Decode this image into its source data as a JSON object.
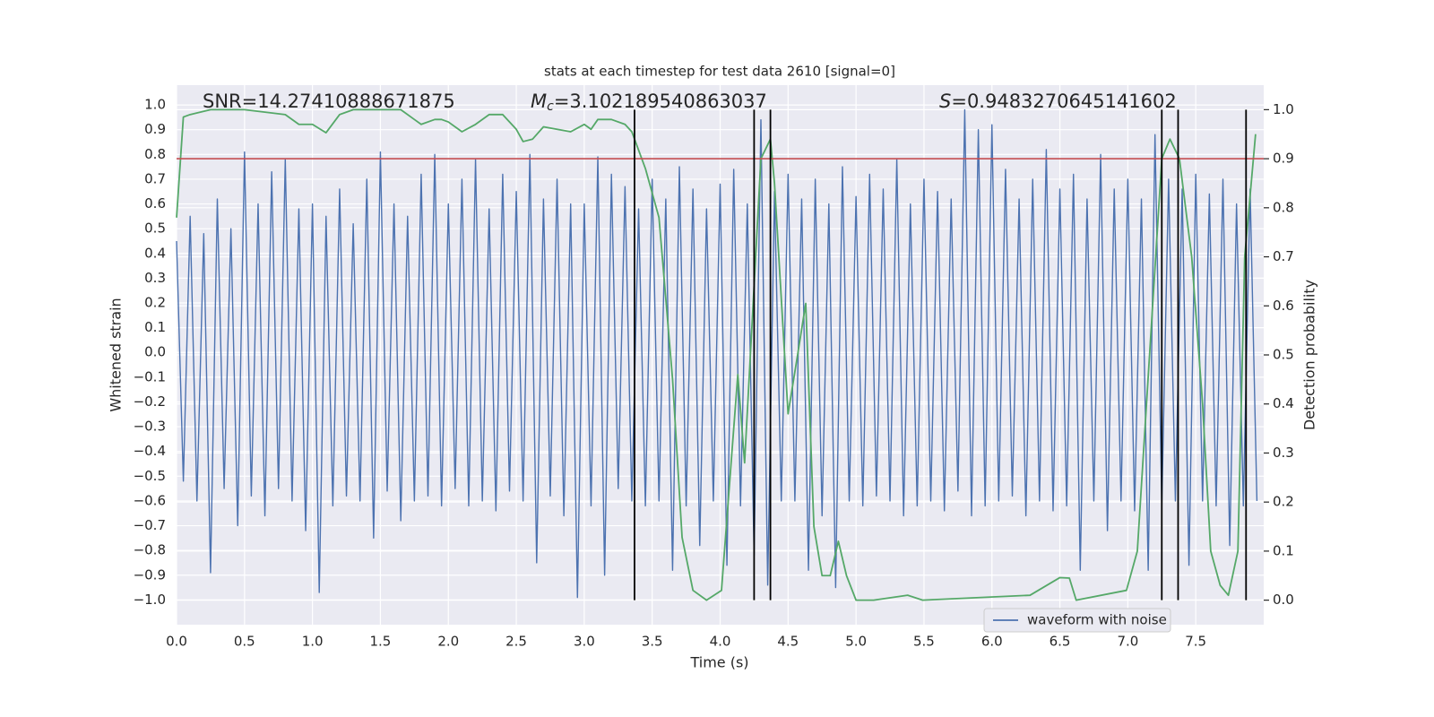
{
  "chart_data": {
    "type": "line",
    "title": "stats at each timestep for test data 2610 [signal=0]",
    "xlabel": "Time (s)",
    "ylabel": "Whitened strain",
    "y2label": "Detection probability",
    "annotations": [
      {
        "parts": [
          "SNR=14.27410888671875"
        ]
      },
      {
        "parts": [
          "M",
          "c",
          "=3.102189540863037"
        ]
      },
      {
        "parts": [
          "S",
          "=0.9483270645141602"
        ]
      }
    ],
    "xlim": [
      0,
      8
    ],
    "ylim": [
      -1.1,
      1.08
    ],
    "y2lim": [
      -0.05,
      1.05
    ],
    "xticks": [
      {
        "value": 0,
        "label": "0.0"
      },
      {
        "value": 0.5,
        "label": "0.5"
      },
      {
        "value": 1,
        "label": "1.0"
      },
      {
        "value": 1.5,
        "label": "1.5"
      },
      {
        "value": 2,
        "label": "2.0"
      },
      {
        "value": 2.5,
        "label": "2.5"
      },
      {
        "value": 3,
        "label": "3.0"
      },
      {
        "value": 3.5,
        "label": "3.5"
      },
      {
        "value": 4,
        "label": "4.0"
      },
      {
        "value": 4.5,
        "label": "4.5"
      },
      {
        "value": 5,
        "label": "5.0"
      },
      {
        "value": 5.5,
        "label": "5.5"
      },
      {
        "value": 6,
        "label": "6.0"
      },
      {
        "value": 6.5,
        "label": "6.5"
      },
      {
        "value": 7,
        "label": "7.0"
      },
      {
        "value": 7.5,
        "label": "7.5"
      }
    ],
    "yticks": [
      {
        "value": 1,
        "label": "1.0"
      },
      {
        "value": 0.9,
        "label": "0.9"
      },
      {
        "value": 0.8,
        "label": "0.8"
      },
      {
        "value": 0.7,
        "label": "0.7"
      },
      {
        "value": 0.6,
        "label": "0.6"
      },
      {
        "value": 0.5,
        "label": "0.5"
      },
      {
        "value": 0.4,
        "label": "0.4"
      },
      {
        "value": 0.3,
        "label": "0.3"
      },
      {
        "value": 0.2,
        "label": "0.2"
      },
      {
        "value": 0.1,
        "label": "0.1"
      },
      {
        "value": 0,
        "label": "0.0"
      },
      {
        "value": -0.1,
        "label": "−0.1"
      },
      {
        "value": -0.2,
        "label": "−0.2"
      },
      {
        "value": -0.3,
        "label": "−0.3"
      },
      {
        "value": -0.4,
        "label": "−0.4"
      },
      {
        "value": -0.5,
        "label": "−0.5"
      },
      {
        "value": -0.6,
        "label": "−0.6"
      },
      {
        "value": -0.7,
        "label": "−0.7"
      },
      {
        "value": -0.8,
        "label": "−0.8"
      },
      {
        "value": -0.9,
        "label": "−0.9"
      },
      {
        "value": -1,
        "label": "−1.0"
      }
    ],
    "y2ticks": [
      {
        "value": 0,
        "label": "0.0"
      },
      {
        "value": 0.1,
        "label": "0.1"
      },
      {
        "value": 0.2,
        "label": "0.2"
      },
      {
        "value": 0.3,
        "label": "0.3"
      },
      {
        "value": 0.4,
        "label": "0.4"
      },
      {
        "value": 0.5,
        "label": "0.5"
      },
      {
        "value": 0.6,
        "label": "0.6"
      },
      {
        "value": 0.7,
        "label": "0.7"
      },
      {
        "value": 0.8,
        "label": "0.8"
      },
      {
        "value": 0.9,
        "label": "0.9"
      },
      {
        "value": 1,
        "label": "1.0"
      }
    ],
    "grid": true,
    "legend": "lower right",
    "series": [
      {
        "name": "waveform with noise",
        "color": "#4c72b0",
        "axis": "y",
        "x": [
          0,
          0.05,
          0.1,
          0.15,
          0.2,
          0.25,
          0.3,
          0.35,
          0.4,
          0.45,
          0.5,
          0.55,
          0.6,
          0.65,
          0.7,
          0.75,
          0.8,
          0.85,
          0.9,
          0.95,
          1,
          1.05,
          1.1,
          1.15,
          1.2,
          1.25,
          1.3,
          1.35,
          1.4,
          1.45,
          1.5,
          1.55,
          1.6,
          1.65,
          1.7,
          1.75,
          1.8,
          1.85,
          1.9,
          1.95,
          2,
          2.05,
          2.1,
          2.15,
          2.2,
          2.25,
          2.3,
          2.35,
          2.4,
          2.45,
          2.5,
          2.55,
          2.6,
          2.65,
          2.7,
          2.75,
          2.8,
          2.85,
          2.9,
          2.95,
          3,
          3.05,
          3.1,
          3.15,
          3.2,
          3.25,
          3.3,
          3.35,
          3.4,
          3.45,
          3.5,
          3.55,
          3.6,
          3.65,
          3.7,
          3.75,
          3.8,
          3.85,
          3.9,
          3.95,
          4,
          4.05,
          4.1,
          4.15,
          4.2,
          4.25,
          4.3,
          4.35,
          4.4,
          4.45,
          4.5,
          4.55,
          4.6,
          4.65,
          4.7,
          4.75,
          4.8,
          4.85,
          4.9,
          4.95,
          5,
          5.05,
          5.1,
          5.15,
          5.2,
          5.25,
          5.3,
          5.35,
          5.4,
          5.45,
          5.5,
          5.55,
          5.6,
          5.65,
          5.7,
          5.75,
          5.8,
          5.85,
          5.9,
          5.95,
          6,
          6.05,
          6.1,
          6.15,
          6.2,
          6.25,
          6.3,
          6.35,
          6.4,
          6.45,
          6.5,
          6.55,
          6.6,
          6.65,
          6.7,
          6.75,
          6.8,
          6.85,
          6.9,
          6.95,
          7,
          7.05,
          7.1,
          7.15,
          7.2,
          7.25,
          7.3,
          7.35,
          7.4,
          7.45,
          7.5,
          7.55,
          7.6,
          7.65,
          7.7,
          7.75,
          7.8,
          7.85,
          7.9,
          7.95
        ],
        "values": [
          0.45,
          -0.52,
          0.55,
          -0.6,
          0.48,
          -0.89,
          0.62,
          -0.55,
          0.5,
          -0.7,
          0.81,
          -0.58,
          0.6,
          -0.66,
          0.73,
          -0.55,
          0.78,
          -0.6,
          0.58,
          -0.72,
          0.6,
          -0.97,
          0.55,
          -0.62,
          0.66,
          -0.58,
          0.52,
          -0.6,
          0.7,
          -0.75,
          0.81,
          -0.56,
          0.6,
          -0.68,
          0.55,
          -0.6,
          0.72,
          -0.58,
          0.8,
          -0.62,
          0.6,
          -0.55,
          0.7,
          -0.62,
          0.78,
          -0.6,
          0.58,
          -0.64,
          0.72,
          -0.56,
          0.65,
          -0.6,
          0.8,
          -0.85,
          0.62,
          -0.58,
          0.7,
          -0.66,
          0.6,
          -0.99,
          0.6,
          -0.62,
          0.79,
          -0.9,
          0.72,
          -0.55,
          0.67,
          -0.6,
          0.58,
          -0.62,
          0.7,
          -0.6,
          0.62,
          -0.88,
          0.75,
          -0.62,
          0.66,
          -0.78,
          0.58,
          -0.6,
          0.68,
          -0.86,
          0.74,
          -0.62,
          0.6,
          -0.82,
          0.94,
          -0.94,
          0.65,
          -0.6,
          0.72,
          -0.6,
          0.62,
          -0.88,
          0.7,
          -0.66,
          0.6,
          -0.95,
          0.75,
          -0.6,
          0.63,
          -0.62,
          0.72,
          -0.58,
          0.66,
          -0.6,
          0.78,
          -0.66,
          0.6,
          -0.62,
          0.7,
          -0.6,
          0.65,
          -0.64,
          0.62,
          -0.56,
          0.98,
          -0.66,
          0.9,
          -0.62,
          0.92,
          -0.6,
          0.74,
          -0.58,
          0.62,
          -0.66,
          0.7,
          -0.6,
          0.82,
          -0.64,
          0.66,
          -0.62,
          0.72,
          -0.88,
          0.62,
          -0.6,
          0.8,
          -0.72,
          0.66,
          -0.6,
          0.7,
          -0.64,
          0.62,
          -0.88,
          0.88,
          -0.62,
          0.7,
          -0.6,
          0.66,
          -0.86,
          0.72,
          -0.6,
          0.64,
          -0.62,
          0.7,
          -0.78,
          0.6,
          -0.62,
          0.66,
          -0.6
        ]
      },
      {
        "name": null,
        "color": "#55a868",
        "axis": "y2",
        "x": [
          0,
          0.05,
          0.1,
          0.25,
          0.5,
          0.8,
          0.9,
          1,
          1.1,
          1.2,
          1.3,
          1.65,
          1.75,
          1.8,
          1.9,
          1.95,
          2,
          2.1,
          2.2,
          2.3,
          2.4,
          2.5,
          2.55,
          2.62,
          2.7,
          2.8,
          2.9,
          3,
          3.05,
          3.1,
          3.2,
          3.3,
          3.35,
          3.45,
          3.55,
          3.65,
          3.72,
          3.8,
          3.9,
          4.01,
          4.13,
          4.18,
          4.3,
          4.37,
          4.4,
          4.5,
          4.57,
          4.63,
          4.67,
          4.69,
          4.75,
          4.81,
          4.87,
          4.93,
          5,
          5.13,
          5.38,
          5.49,
          6.28,
          6.5,
          6.57,
          6.62,
          6.99,
          7.07,
          7.25,
          7.31,
          7.38,
          7.47,
          7.55,
          7.61,
          7.68,
          7.74,
          7.81,
          7.86,
          7.94
        ],
        "values": [
          0.78,
          0.985,
          0.99,
          1,
          1,
          0.99,
          0.97,
          0.97,
          0.953,
          0.99,
          1,
          1,
          0.98,
          0.97,
          0.98,
          0.98,
          0.975,
          0.955,
          0.97,
          0.99,
          0.99,
          0.96,
          0.935,
          0.94,
          0.965,
          0.96,
          0.955,
          0.97,
          0.96,
          0.98,
          0.98,
          0.97,
          0.955,
          0.88,
          0.78,
          0.45,
          0.128,
          0.02,
          0,
          0.02,
          0.46,
          0.28,
          0.9,
          0.94,
          0.85,
          0.38,
          0.5,
          0.605,
          0.3,
          0.15,
          0.05,
          0.05,
          0.12,
          0.05,
          0,
          0,
          0.01,
          0,
          0.01,
          0.046,
          0.045,
          0,
          0.02,
          0.1,
          0.9,
          0.94,
          0.9,
          0.7,
          0.4,
          0.1,
          0.03,
          0.01,
          0.1,
          0.7,
          0.95
        ]
      }
    ],
    "hline": {
      "value": 0.9,
      "axis": "y2",
      "color": "#c44e52"
    },
    "vlines": {
      "x": [
        3.37,
        4.25,
        4.37,
        7.25,
        7.37,
        7.87
      ],
      "ymin": 0,
      "ymax": 1,
      "axis": "y2",
      "color": "#000000"
    }
  }
}
